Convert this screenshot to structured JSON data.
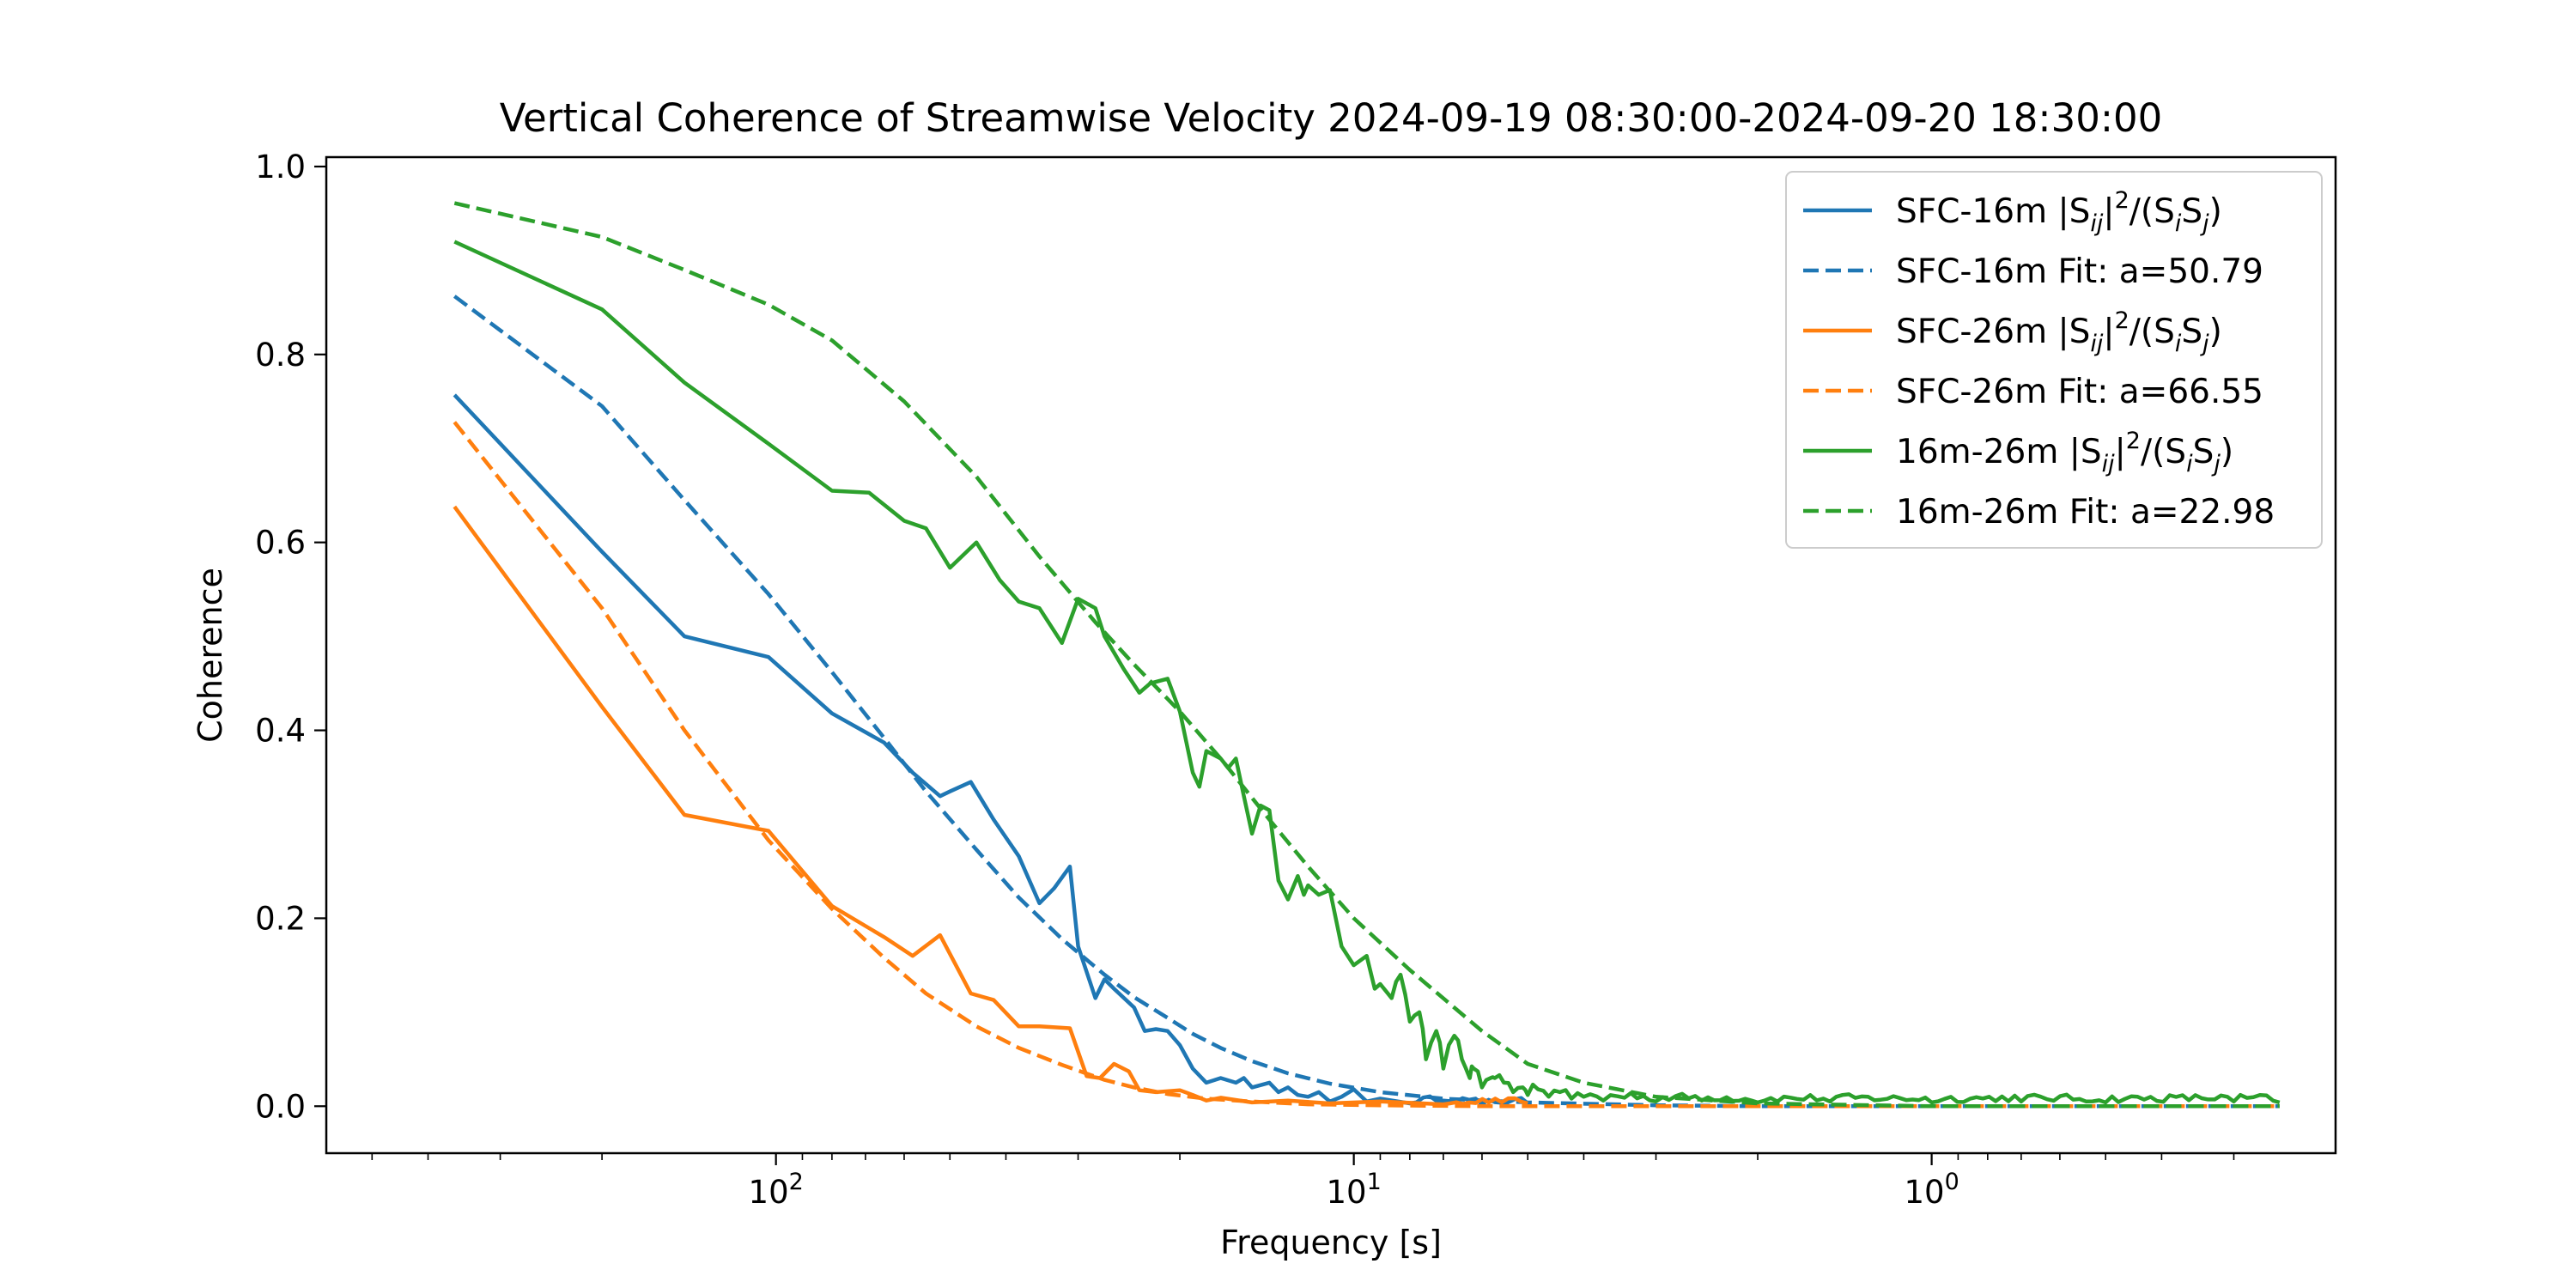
{
  "chart_data": {
    "type": "line",
    "title": "Vertical Coherence of Streamwise Velocity 2024-09-19 08:30:00-2024-09-20 18:30:00",
    "xlabel": "Frequency [s]",
    "ylabel": "Coherence",
    "x_scale": "log",
    "x_inverted": true,
    "xlim": [
      600,
      0.2
    ],
    "ylim": [
      -0.05,
      1.01
    ],
    "x_ticks": [
      {
        "value": 100,
        "base": "10",
        "exp": "2"
      },
      {
        "value": 10,
        "base": "10",
        "exp": "1"
      },
      {
        "value": 1,
        "base": "10",
        "exp": "0"
      }
    ],
    "y_ticks": [
      "0.0",
      "0.2",
      "0.4",
      "0.6",
      "0.8",
      "1.0"
    ],
    "grid": false,
    "legend_position": "top-right",
    "series": [
      {
        "name": "SFC-16m |Sij|2/(SiSj)",
        "legend": {
          "pre": "SFC-16m |S",
          "sub1": "ij",
          "mid": "|",
          "sup": "2",
          "post1": "/(S",
          "sub2": "i",
          "post2": "S",
          "sub3": "j",
          "post3": ")"
        },
        "color": "#1f77b4",
        "dashed": false,
        "noise_amp": 0.006,
        "x": [
          360,
          200,
          144,
          103,
          80,
          65,
          58,
          52,
          50,
          46,
          42,
          38,
          35,
          33,
          31,
          30,
          28,
          27,
          26,
          24,
          23,
          22,
          21,
          20,
          19,
          18,
          17,
          16,
          15.5,
          15,
          14,
          13.5,
          13,
          12.5,
          12,
          11.5,
          11,
          10.5,
          10,
          9.5,
          9,
          8,
          7,
          6,
          5
        ],
        "y": [
          0.757,
          0.59,
          0.5,
          0.478,
          0.418,
          0.387,
          0.355,
          0.33,
          0.335,
          0.345,
          0.305,
          0.266,
          0.216,
          0.232,
          0.255,
          0.17,
          0.115,
          0.135,
          0.125,
          0.105,
          0.08,
          0.082,
          0.08,
          0.065,
          0.04,
          0.025,
          0.03,
          0.025,
          0.03,
          0.02,
          0.025,
          0.015,
          0.02,
          0.012,
          0.01,
          0.015,
          0.005,
          0.01,
          0.018,
          0.005,
          0.008,
          0.003,
          0.006,
          0.002,
          0.003
        ]
      },
      {
        "name": "SFC-16m Fit: a=50.79",
        "color": "#1f77b4",
        "dashed": true,
        "x": [
          360,
          200,
          144,
          103,
          80,
          65,
          55,
          45,
          38,
          32,
          27,
          24,
          21,
          19,
          17,
          15,
          13,
          11,
          9,
          7,
          5,
          3,
          2,
          1,
          0.5,
          0.25
        ],
        "y": [
          0.862,
          0.745,
          0.645,
          0.545,
          0.462,
          0.392,
          0.335,
          0.273,
          0.222,
          0.178,
          0.14,
          0.116,
          0.094,
          0.077,
          0.062,
          0.048,
          0.035,
          0.024,
          0.015,
          0.008,
          0.004,
          0.001,
          0.0,
          0.0,
          0.0,
          0.0
        ]
      },
      {
        "name": "SFC-26m |Sij|2/(SiSj)",
        "legend": {
          "pre": "SFC-26m |S",
          "sub1": "ij",
          "mid": "|",
          "sup": "2",
          "post1": "/(S",
          "sub2": "i",
          "post2": "S",
          "sub3": "j",
          "post3": ")"
        },
        "color": "#ff7f0e",
        "dashed": false,
        "noise_amp": 0.006,
        "x": [
          360,
          200,
          144,
          103,
          80,
          65,
          58,
          52,
          46,
          42,
          38,
          35,
          31,
          29,
          27.5,
          26,
          24.5,
          23.5,
          22,
          20,
          19,
          18,
          17,
          15,
          13,
          11,
          9,
          7,
          5
        ],
        "y": [
          0.638,
          0.425,
          0.31,
          0.293,
          0.213,
          0.18,
          0.16,
          0.182,
          0.12,
          0.113,
          0.085,
          0.085,
          0.083,
          0.032,
          0.03,
          0.045,
          0.037,
          0.017,
          0.015,
          0.017,
          0.012,
          0.006,
          0.009,
          0.004,
          0.006,
          0.003,
          0.005,
          0.002,
          0.003
        ]
      },
      {
        "name": "SFC-26m Fit: a=66.55",
        "color": "#ff7f0e",
        "dashed": true,
        "x": [
          360,
          200,
          144,
          103,
          80,
          65,
          55,
          45,
          38,
          32,
          27,
          24,
          21,
          18,
          15,
          12,
          9,
          6,
          3,
          1,
          0.25
        ],
        "y": [
          0.728,
          0.53,
          0.4,
          0.283,
          0.21,
          0.158,
          0.12,
          0.085,
          0.062,
          0.044,
          0.028,
          0.02,
          0.013,
          0.008,
          0.005,
          0.002,
          0.001,
          0.0,
          0.0,
          0.0,
          0.0
        ]
      },
      {
        "name": "16m-26m |Sij|2/(SiSj)",
        "legend": {
          "pre": "16m-26m |S",
          "sub1": "ij",
          "mid": "|",
          "sup": "2",
          "post1": "/(S",
          "sub2": "i",
          "post2": "S",
          "sub3": "j",
          "post3": ")"
        },
        "color": "#2ca02c",
        "dashed": false,
        "noise_amp": 0.008,
        "x": [
          360,
          200,
          144,
          103,
          80,
          69,
          60,
          55,
          50,
          45,
          41,
          38,
          35,
          32,
          30,
          28,
          27,
          25,
          23.5,
          22.5,
          21,
          20,
          19,
          18.5,
          18,
          17,
          16.5,
          16,
          15.5,
          15,
          14.5,
          14,
          13.5,
          13,
          12.5,
          12.2,
          12,
          11.5,
          11,
          10.5,
          10,
          9.5,
          9.2,
          9,
          8.6,
          8.3,
          8,
          7.7,
          7.5,
          7.2,
          7,
          6.7,
          6.5,
          6.3,
          6.2,
          6,
          5.8,
          5.7,
          5.5,
          5.3,
          5.1,
          5,
          4.8,
          4.6,
          4.4,
          4.2,
          4,
          3.7,
          3.4,
          3,
          2.5,
          2,
          1.5,
          1,
          0.7,
          0.5,
          0.3,
          0.25
        ],
        "y": [
          0.92,
          0.848,
          0.77,
          0.705,
          0.655,
          0.653,
          0.623,
          0.615,
          0.573,
          0.6,
          0.56,
          0.537,
          0.53,
          0.493,
          0.54,
          0.53,
          0.5,
          0.465,
          0.44,
          0.45,
          0.455,
          0.42,
          0.355,
          0.34,
          0.378,
          0.37,
          0.36,
          0.37,
          0.33,
          0.29,
          0.32,
          0.315,
          0.24,
          0.22,
          0.245,
          0.225,
          0.235,
          0.225,
          0.23,
          0.17,
          0.15,
          0.16,
          0.125,
          0.13,
          0.115,
          0.14,
          0.09,
          0.1,
          0.05,
          0.08,
          0.04,
          0.075,
          0.05,
          0.03,
          0.04,
          0.02,
          0.03,
          0.03,
          0.025,
          0.015,
          0.02,
          0.012,
          0.018,
          0.01,
          0.015,
          0.008,
          0.01,
          0.006,
          0.009,
          0.005,
          0.006,
          0.004,
          0.005,
          0.004,
          0.005,
          0.004,
          0.005,
          0.004
        ]
      },
      {
        "name": "16m-26m Fit: a=22.98",
        "color": "#2ca02c",
        "dashed": true,
        "x": [
          360,
          200,
          144,
          103,
          80,
          60,
          45,
          35,
          28,
          24,
          20,
          17,
          14,
          12,
          10,
          8,
          6,
          5,
          4,
          3,
          2,
          1,
          0.5,
          0.25
        ],
        "y": [
          0.961,
          0.925,
          0.89,
          0.853,
          0.815,
          0.75,
          0.67,
          0.585,
          0.515,
          0.47,
          0.42,
          0.37,
          0.305,
          0.255,
          0.2,
          0.145,
          0.08,
          0.045,
          0.025,
          0.01,
          0.003,
          0.0,
          0.0,
          0.0
        ]
      }
    ]
  }
}
